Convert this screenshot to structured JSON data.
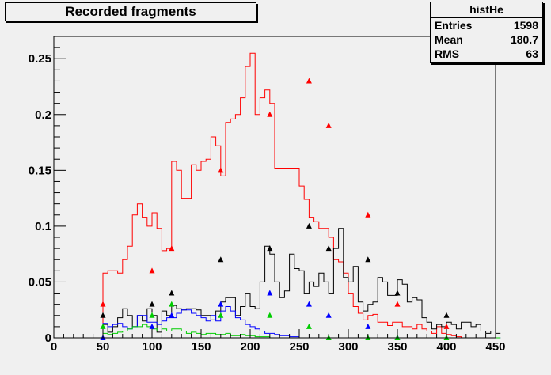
{
  "title": "Recorded fragments",
  "stats": {
    "name": "histHe",
    "rows": [
      {
        "label": "Entries",
        "value": "1598"
      },
      {
        "label": "Mean",
        "value": "180.7"
      },
      {
        "label": "RMS",
        "value": "63"
      }
    ]
  },
  "chart_data": {
    "type": "line",
    "xlim": [
      0,
      450
    ],
    "ylim": [
      0,
      0.27
    ],
    "xticks": [
      0,
      50,
      100,
      150,
      200,
      250,
      300,
      350,
      400,
      450
    ],
    "xtick_labels": [
      "0",
      "50",
      "100",
      "150",
      "200",
      "250",
      "300",
      "350",
      "400",
      "450"
    ],
    "yticks": [
      0,
      0.05,
      0.1,
      0.15,
      0.2,
      0.25
    ],
    "ytick_labels": [
      "0",
      "0.05",
      "0.1",
      "0.15",
      "0.2",
      "0.25"
    ],
    "bin_width": 5,
    "histograms": [
      {
        "color": "#ff0000",
        "values": [
          0,
          0,
          0,
          0,
          0,
          0,
          0,
          0,
          0,
          0,
          0.058,
          0.06,
          0.06,
          0.058,
          0.07,
          0.082,
          0.11,
          0.12,
          0.108,
          0.1,
          0.112,
          0.098,
          0.078,
          0.08,
          0.158,
          0.15,
          0.125,
          0.125,
          0.155,
          0.15,
          0.158,
          0.16,
          0.18,
          0.172,
          0.145,
          0.193,
          0.196,
          0.2,
          0.215,
          0.243,
          0.255,
          0.2,
          0.215,
          0.222,
          0.21,
          0.152,
          0.152,
          0.152,
          0.152,
          0.152,
          0.136,
          0.124,
          0.108,
          0.104,
          0.098,
          0.098,
          0.09,
          0.07,
          0.068,
          0.058,
          0.04,
          0.028,
          0.022,
          0.016,
          0.02,
          0.021,
          0.014,
          0.014,
          0.011,
          0.014,
          0.014,
          0.01,
          0.01,
          0.008,
          0.012,
          0.008,
          0.006,
          0.004,
          0.01,
          0.004,
          0.003,
          0.002,
          0.001,
          0,
          0,
          0,
          0,
          0,
          0,
          0
        ]
      },
      {
        "color": "#000000",
        "values": [
          0,
          0,
          0,
          0,
          0,
          0,
          0,
          0,
          0,
          0,
          0.012,
          0.005,
          0.01,
          0.018,
          0.026,
          0.02,
          0.01,
          0.02,
          0.015,
          0.026,
          0.02,
          0.005,
          0.024,
          0.02,
          0.029,
          0.026,
          0.025,
          0.026,
          0.026,
          0.025,
          0.02,
          0.02,
          0.016,
          0.024,
          0.032,
          0.036,
          0.036,
          0.02,
          0.028,
          0.04,
          0.028,
          0.026,
          0.05,
          0.082,
          0.075,
          0.05,
          0.036,
          0.042,
          0.075,
          0.062,
          0.06,
          0.04,
          0.05,
          0.046,
          0.058,
          0.05,
          0.04,
          0.08,
          0.098,
          0.054,
          0.05,
          0.064,
          0.032,
          0.024,
          0.03,
          0.032,
          0.054,
          0.05,
          0.038,
          0.038,
          0.052,
          0.048,
          0.032,
          0.036,
          0.034,
          0.018,
          0.014,
          0.008,
          0.012,
          0.01,
          0.014,
          0.012,
          0.008,
          0.014,
          0.014,
          0.01,
          0.012,
          0.006,
          0.004,
          0.006,
          0.004
        ]
      },
      {
        "color": "#0000ff",
        "values": [
          0,
          0,
          0,
          0,
          0,
          0,
          0,
          0,
          0,
          0,
          0.013,
          0.01,
          0.012,
          0.013,
          0.01,
          0.008,
          0.01,
          0.02,
          0.02,
          0.014,
          0.014,
          0.012,
          0.015,
          0.018,
          0.018,
          0.022,
          0.025,
          0.025,
          0.022,
          0.02,
          0.018,
          0.015,
          0.02,
          0.015,
          0.024,
          0.028,
          0.024,
          0.018,
          0.016,
          0.012,
          0.01,
          0.008,
          0.006,
          0.004,
          0.004,
          0.003,
          0.002,
          0.002,
          0.001,
          0.001,
          0,
          0,
          0,
          0,
          0,
          0,
          0,
          0,
          0,
          0,
          0,
          0,
          0,
          0,
          0,
          0,
          0,
          0,
          0,
          0,
          0,
          0,
          0,
          0,
          0,
          0,
          0,
          0,
          0,
          0,
          0,
          0,
          0,
          0,
          0,
          0,
          0,
          0,
          0,
          0,
          0
        ]
      },
      {
        "color": "#00cc00",
        "values": [
          0,
          0,
          0,
          0,
          0,
          0,
          0,
          0,
          0,
          0,
          0.004,
          0.003,
          0.004,
          0.005,
          0.006,
          0.008,
          0.01,
          0.01,
          0.012,
          0.01,
          0.008,
          0.006,
          0.008,
          0.006,
          0.008,
          0.008,
          0.006,
          0.004,
          0.005,
          0.004,
          0.003,
          0.004,
          0.004,
          0.003,
          0.003,
          0.004,
          0.002,
          0.002,
          0.003,
          0.002,
          0.002,
          0.001,
          0.001,
          0.001,
          0,
          0,
          0,
          0,
          0,
          0,
          0,
          0,
          0,
          0,
          0,
          0,
          0,
          0,
          0,
          0,
          0,
          0,
          0,
          0,
          0,
          0,
          0,
          0,
          0,
          0,
          0,
          0,
          0,
          0,
          0,
          0,
          0,
          0,
          0,
          0,
          0,
          0,
          0,
          0,
          0,
          0,
          0,
          0,
          0,
          0,
          0
        ]
      }
    ],
    "markers": [
      {
        "color": "#ff0000",
        "x": [
          50,
          100,
          120,
          170,
          220,
          260,
          280,
          320,
          350,
          400
        ],
        "y": [
          0.03,
          0.06,
          0.08,
          0.15,
          0.2,
          0.23,
          0.19,
          0.11,
          0.03,
          0.01
        ]
      },
      {
        "color": "#000000",
        "x": [
          50,
          100,
          120,
          170,
          220,
          260,
          280,
          320,
          350,
          400
        ],
        "y": [
          0.02,
          0.03,
          0.04,
          0.07,
          0.08,
          0.1,
          0.08,
          0.07,
          0.04,
          0.02
        ]
      },
      {
        "color": "#0000ff",
        "x": [
          50,
          100,
          120,
          170,
          220,
          260,
          280,
          320,
          350
        ],
        "y": [
          0.0,
          0.01,
          0.02,
          0.03,
          0.04,
          0.03,
          0.02,
          0.01,
          0.0
        ]
      },
      {
        "color": "#00cc00",
        "x": [
          50,
          100,
          120,
          170,
          220,
          260,
          280,
          320,
          350,
          400
        ],
        "y": [
          0.01,
          0.02,
          0.03,
          0.02,
          0.02,
          0.01,
          0.0,
          0.0,
          0.0,
          0.0
        ]
      }
    ]
  }
}
